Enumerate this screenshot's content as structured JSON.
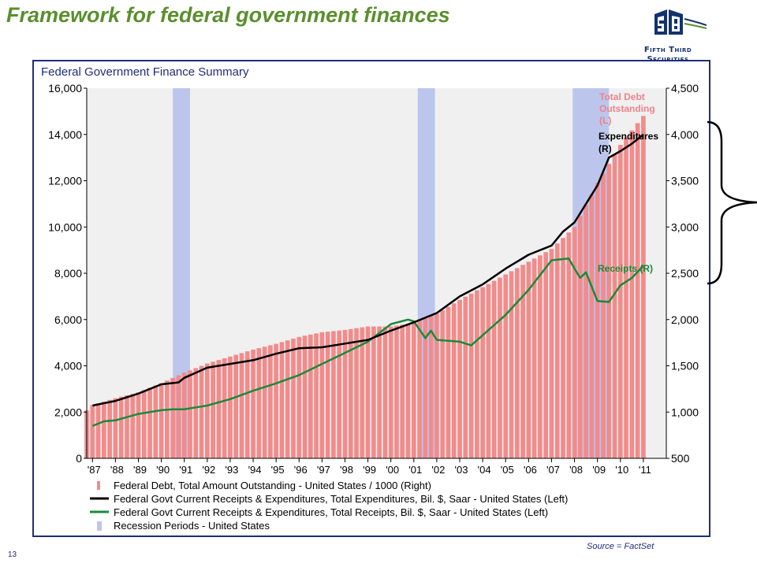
{
  "slide": {
    "title": "Framework for federal government finances",
    "logo_text_line1": "Fifth Third",
    "logo_text_line2": "Securities",
    "source": "Source = FactSet",
    "page_number": "13"
  },
  "colors": {
    "title": "#5a8f2e",
    "frame": "#1f2d7a",
    "debt_bar": "#f28b8b",
    "expenditures": "#000000",
    "receipts": "#1a8a3a",
    "recession": "#bcc6ec",
    "plot_bg": "#f0f0f0",
    "annotation_debt": "#f0828a",
    "annotation_receipts": "#1a8a3a"
  },
  "chart_data": {
    "type": "bar",
    "title": "Federal Government Finance Summary",
    "x_tick_labels": [
      "'87",
      "'88",
      "'89",
      "'90",
      "'91",
      "'92",
      "'93",
      "'94",
      "'95",
      "'96",
      "'97",
      "'98",
      "'99",
      "'00",
      "'01",
      "'02",
      "'03",
      "'04",
      "'05",
      "'06",
      "'07",
      "'08",
      "'09",
      "'10",
      "'11"
    ],
    "x_range": [
      1986.75,
      2012.0
    ],
    "y_left": {
      "range": [
        0,
        16000
      ],
      "ticks": [
        "0",
        "2,000",
        "4,000",
        "6,000",
        "8,000",
        "10,000",
        "12,000",
        "14,000",
        "16,000"
      ]
    },
    "y_right": {
      "range": [
        500,
        4500
      ],
      "ticks": [
        "500",
        "1,000",
        "1,500",
        "2,000",
        "2,500",
        "3,000",
        "3,500",
        "4,000",
        "4,500"
      ]
    },
    "grid": false,
    "recessions": [
      [
        1990.5,
        1991.25
      ],
      [
        2001.17,
        2001.92
      ],
      [
        2007.92,
        2009.5
      ]
    ],
    "series": [
      {
        "name": "Federal Debt, Total Amount Outstanding - United States / 1000 (Right)",
        "kind": "bar",
        "axis": "left",
        "points": [
          [
            1987.0,
            2300
          ],
          [
            1988.0,
            2600
          ],
          [
            1989.0,
            2850
          ],
          [
            1990.0,
            3250
          ],
          [
            1991.0,
            3700
          ],
          [
            1992.0,
            4100
          ],
          [
            1993.0,
            4400
          ],
          [
            1994.0,
            4700
          ],
          [
            1995.0,
            4950
          ],
          [
            1996.0,
            5250
          ],
          [
            1997.0,
            5450
          ],
          [
            1998.0,
            5550
          ],
          [
            1999.0,
            5700
          ],
          [
            2000.0,
            5700
          ],
          [
            2001.0,
            5850
          ],
          [
            2002.0,
            6250
          ],
          [
            2003.0,
            6850
          ],
          [
            2004.0,
            7400
          ],
          [
            2005.0,
            7950
          ],
          [
            2006.0,
            8500
          ],
          [
            2007.0,
            9050
          ],
          [
            2008.0,
            10000
          ],
          [
            2009.0,
            11900
          ],
          [
            2010.0,
            13550
          ],
          [
            2011.0,
            14800
          ]
        ]
      },
      {
        "name": "Federal Govt Current Receipts & Expenditures, Total Expenditures, Bil. $, Saar - United States (Left)",
        "kind": "line",
        "axis": "right",
        "points": [
          [
            1987.0,
            1070
          ],
          [
            1988.0,
            1120
          ],
          [
            1989.0,
            1200
          ],
          [
            1990.0,
            1300
          ],
          [
            1990.75,
            1320
          ],
          [
            1991.0,
            1370
          ],
          [
            1992.0,
            1480
          ],
          [
            1993.0,
            1520
          ],
          [
            1994.0,
            1560
          ],
          [
            1995.0,
            1630
          ],
          [
            1996.0,
            1690
          ],
          [
            1997.0,
            1700
          ],
          [
            1998.0,
            1740
          ],
          [
            1999.0,
            1780
          ],
          [
            2000.0,
            1880
          ],
          [
            2001.0,
            1970
          ],
          [
            2002.0,
            2070
          ],
          [
            2003.0,
            2250
          ],
          [
            2004.0,
            2380
          ],
          [
            2005.0,
            2550
          ],
          [
            2006.0,
            2700
          ],
          [
            2007.0,
            2800
          ],
          [
            2007.5,
            2950
          ],
          [
            2008.0,
            3050
          ],
          [
            2008.5,
            3250
          ],
          [
            2009.0,
            3450
          ],
          [
            2009.5,
            3750
          ],
          [
            2010.0,
            3820
          ],
          [
            2010.5,
            3900
          ],
          [
            2011.0,
            4000
          ]
        ]
      },
      {
        "name": "Federal Govt Current Receipts & Expenditures, Total Receipts, Bil. $, Saar - United States (Left)",
        "kind": "line",
        "axis": "right",
        "points": [
          [
            1987.0,
            850
          ],
          [
            1987.5,
            900
          ],
          [
            1988.0,
            910
          ],
          [
            1989.0,
            980
          ],
          [
            1990.0,
            1020
          ],
          [
            1990.5,
            1030
          ],
          [
            1991.0,
            1030
          ],
          [
            1992.0,
            1070
          ],
          [
            1993.0,
            1140
          ],
          [
            1994.0,
            1230
          ],
          [
            1995.0,
            1310
          ],
          [
            1996.0,
            1400
          ],
          [
            1997.0,
            1520
          ],
          [
            1998.0,
            1640
          ],
          [
            1999.0,
            1760
          ],
          [
            2000.0,
            1950
          ],
          [
            2000.75,
            2000
          ],
          [
            2001.0,
            1980
          ],
          [
            2001.5,
            1800
          ],
          [
            2001.75,
            1880
          ],
          [
            2002.0,
            1780
          ],
          [
            2003.0,
            1760
          ],
          [
            2003.5,
            1720
          ],
          [
            2004.0,
            1830
          ],
          [
            2005.0,
            2050
          ],
          [
            2006.0,
            2320
          ],
          [
            2007.0,
            2640
          ],
          [
            2007.75,
            2660
          ],
          [
            2008.0,
            2550
          ],
          [
            2008.25,
            2450
          ],
          [
            2008.5,
            2510
          ],
          [
            2009.0,
            2200
          ],
          [
            2009.5,
            2190
          ],
          [
            2010.0,
            2370
          ],
          [
            2010.5,
            2450
          ],
          [
            2011.0,
            2580
          ]
        ]
      },
      {
        "name": "Recession Periods - United States",
        "kind": "band"
      }
    ],
    "annotations": {
      "debt_line1": "Total Debt",
      "debt_line2": "Outstanding",
      "debt_line3": "(L)",
      "expenditures_line1": "Expenditures",
      "expenditures_line2": "(R)",
      "receipts": "Receipts (R)"
    }
  }
}
